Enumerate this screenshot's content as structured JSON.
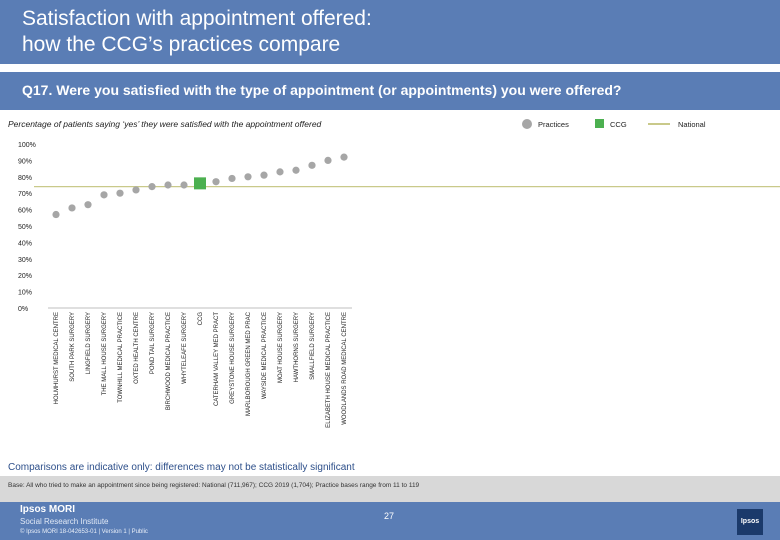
{
  "header": {
    "title_line1": "Satisfaction with appointment offered:",
    "title_line2": "how the CCG’s practices compare",
    "question": "Q17. Were you satisfied with the type of appointment (or appointments) you were offered?"
  },
  "chart_data": {
    "type": "scatter",
    "subtitle": "Percentage of patients saying ‘yes’ they were satisfied with the appointment offered",
    "legend": [
      {
        "name": "Practices",
        "color": "#a6a6a6",
        "marker": "circle"
      },
      {
        "name": "CCG",
        "color": "#4cb050",
        "marker": "square"
      },
      {
        "name": "National",
        "color": "#c9c98a",
        "marker": "line"
      }
    ],
    "legend_position": "top-right",
    "ylim": [
      0,
      100
    ],
    "y_ticks": [
      "0%",
      "10%",
      "20%",
      "30%",
      "40%",
      "50%",
      "60%",
      "70%",
      "80%",
      "90%",
      "100%"
    ],
    "grid": false,
    "national": 74,
    "categories": [
      "HOLMHURST MEDICAL CENTRE",
      "SOUTH PARK SURGERY",
      "LINGFIELD SURGERY",
      "THE MALL HOUSE SURGERY",
      "TOWNHILL MEDICAL PRACTICE",
      "OXTED HEALTH CENTRE",
      "POND TAIL SURGERY",
      "BIRCHWOOD MEDICAL PRACTICE",
      "WHYTELEAFE SURGERY",
      "CCG",
      "CATERHAM VALLEY MED PRACT",
      "GREYSTONE HOUSE SURGERY",
      "MARLBOROUGH GREEN MED PRAC",
      "WAYSIDE MEDICAL PRACTICE",
      "MOAT HOUSE SURGERY",
      "HAWTHORNS SURGERY",
      "SMALLFIELD SURGERY",
      "ELIZABETH HOUSE MEDICAL PRACTICE",
      "WOODLANDS ROAD MEDICAL CENTRE"
    ],
    "values": [
      57,
      61,
      63,
      69,
      70,
      72,
      74,
      75,
      75,
      76,
      77,
      79,
      80,
      81,
      83,
      84,
      87,
      90,
      92
    ],
    "is_ccg": [
      false,
      false,
      false,
      false,
      false,
      false,
      false,
      false,
      false,
      true,
      false,
      false,
      false,
      false,
      false,
      false,
      false,
      false,
      false
    ]
  },
  "notes": {
    "comparison": "Comparisons are indicative only: differences may not be statistically significant",
    "base": "Base: All who tried to make an appointment since being registered: National (711,967); CCG 2019 (1,704); Practice bases range from 11 to 119"
  },
  "footer": {
    "logo": "Ipsos MORI",
    "logo_sub": "Social Research Institute",
    "page_number": "27",
    "copyright": "© Ipsos MORI     18-042653-01 | Version 1 | Public",
    "mark": "Ipsos"
  }
}
